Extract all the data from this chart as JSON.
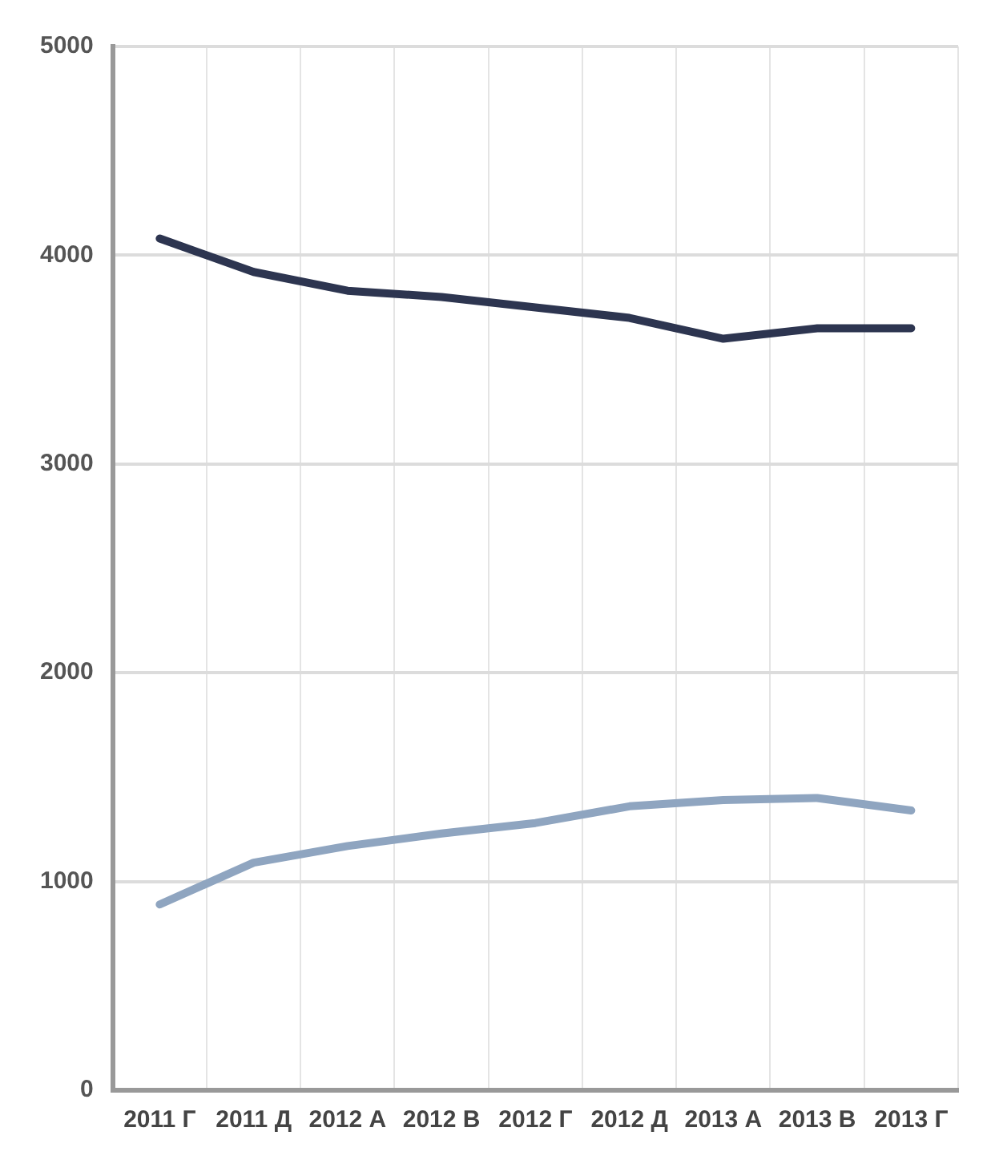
{
  "chart_data": {
    "type": "line",
    "categories": [
      "2011 Г",
      "2011 Д",
      "2012 А",
      "2012 В",
      "2012 Г",
      "2012 Д",
      "2013 А",
      "2013 В",
      "2013 Г"
    ],
    "series": [
      {
        "color": "#2d3550",
        "values": [
          4080,
          3920,
          3830,
          3800,
          3750,
          3700,
          3600,
          3650,
          3650
        ]
      },
      {
        "color": "#8fa5c0",
        "values": [
          890,
          1090,
          1170,
          1230,
          1280,
          1360,
          1390,
          1400,
          1340
        ]
      }
    ],
    "ylim": [
      0,
      5000
    ],
    "yticks": [
      0,
      1000,
      2000,
      3000,
      4000,
      5000
    ],
    "grid": true,
    "legend": false,
    "marker": "none",
    "line_style": "solid"
  }
}
